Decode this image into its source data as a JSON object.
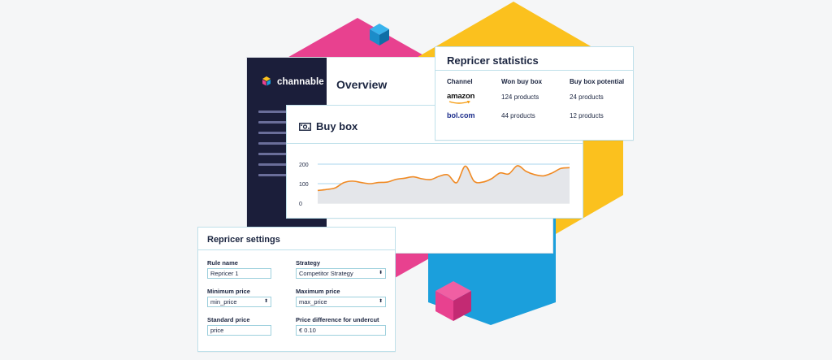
{
  "app": {
    "logo_text": "channable",
    "page_title": "Overview"
  },
  "buy_box": {
    "title": "Buy box",
    "chart_data": {
      "type": "area",
      "title": "Buy box",
      "xlabel": "",
      "ylabel": "",
      "ylim": [
        0,
        200
      ],
      "yticks": [
        0,
        100,
        200
      ],
      "grid": true,
      "series": [
        {
          "values": [
            65,
            70,
            78,
            105,
            113,
            106,
            100,
            106,
            108,
            122,
            128,
            135,
            125,
            121,
            138,
            145,
            105,
            190,
            113,
            108,
            125,
            155,
            150,
            192,
            163,
            146,
            140,
            155,
            178,
            182
          ]
        }
      ],
      "colors": {
        "line": "#f08a24",
        "fill": "#e4e6ea",
        "grid": "#8ec9e6"
      }
    }
  },
  "statistics": {
    "title": "Repricer statistics",
    "columns": [
      "Channel",
      "Won buy box",
      "Buy box potential"
    ],
    "rows": [
      {
        "channel": "amazon",
        "won": "124 products",
        "potential": "24 products"
      },
      {
        "channel": "bol.com",
        "won": "44 products",
        "potential": "12 products"
      }
    ]
  },
  "settings": {
    "title": "Repricer settings",
    "fields": {
      "rule_name": {
        "label": "Rule name",
        "value": "Repricer 1"
      },
      "strategy": {
        "label": "Strategy",
        "value": "Competitor Strategy"
      },
      "min_price": {
        "label": "Minimum price",
        "value": "min_price"
      },
      "max_price": {
        "label": "Maximum price",
        "value": "max_price"
      },
      "std_price": {
        "label": "Standard price",
        "value": "price"
      },
      "undercut": {
        "label": "Price difference for undercut",
        "value": "€ 0.10"
      }
    }
  },
  "colors": {
    "pink": "#e8418f",
    "yellow": "#fbc11e",
    "blue": "#1b9fdc",
    "navy": "#1b1e3a",
    "accent_line": "#f08a24"
  }
}
